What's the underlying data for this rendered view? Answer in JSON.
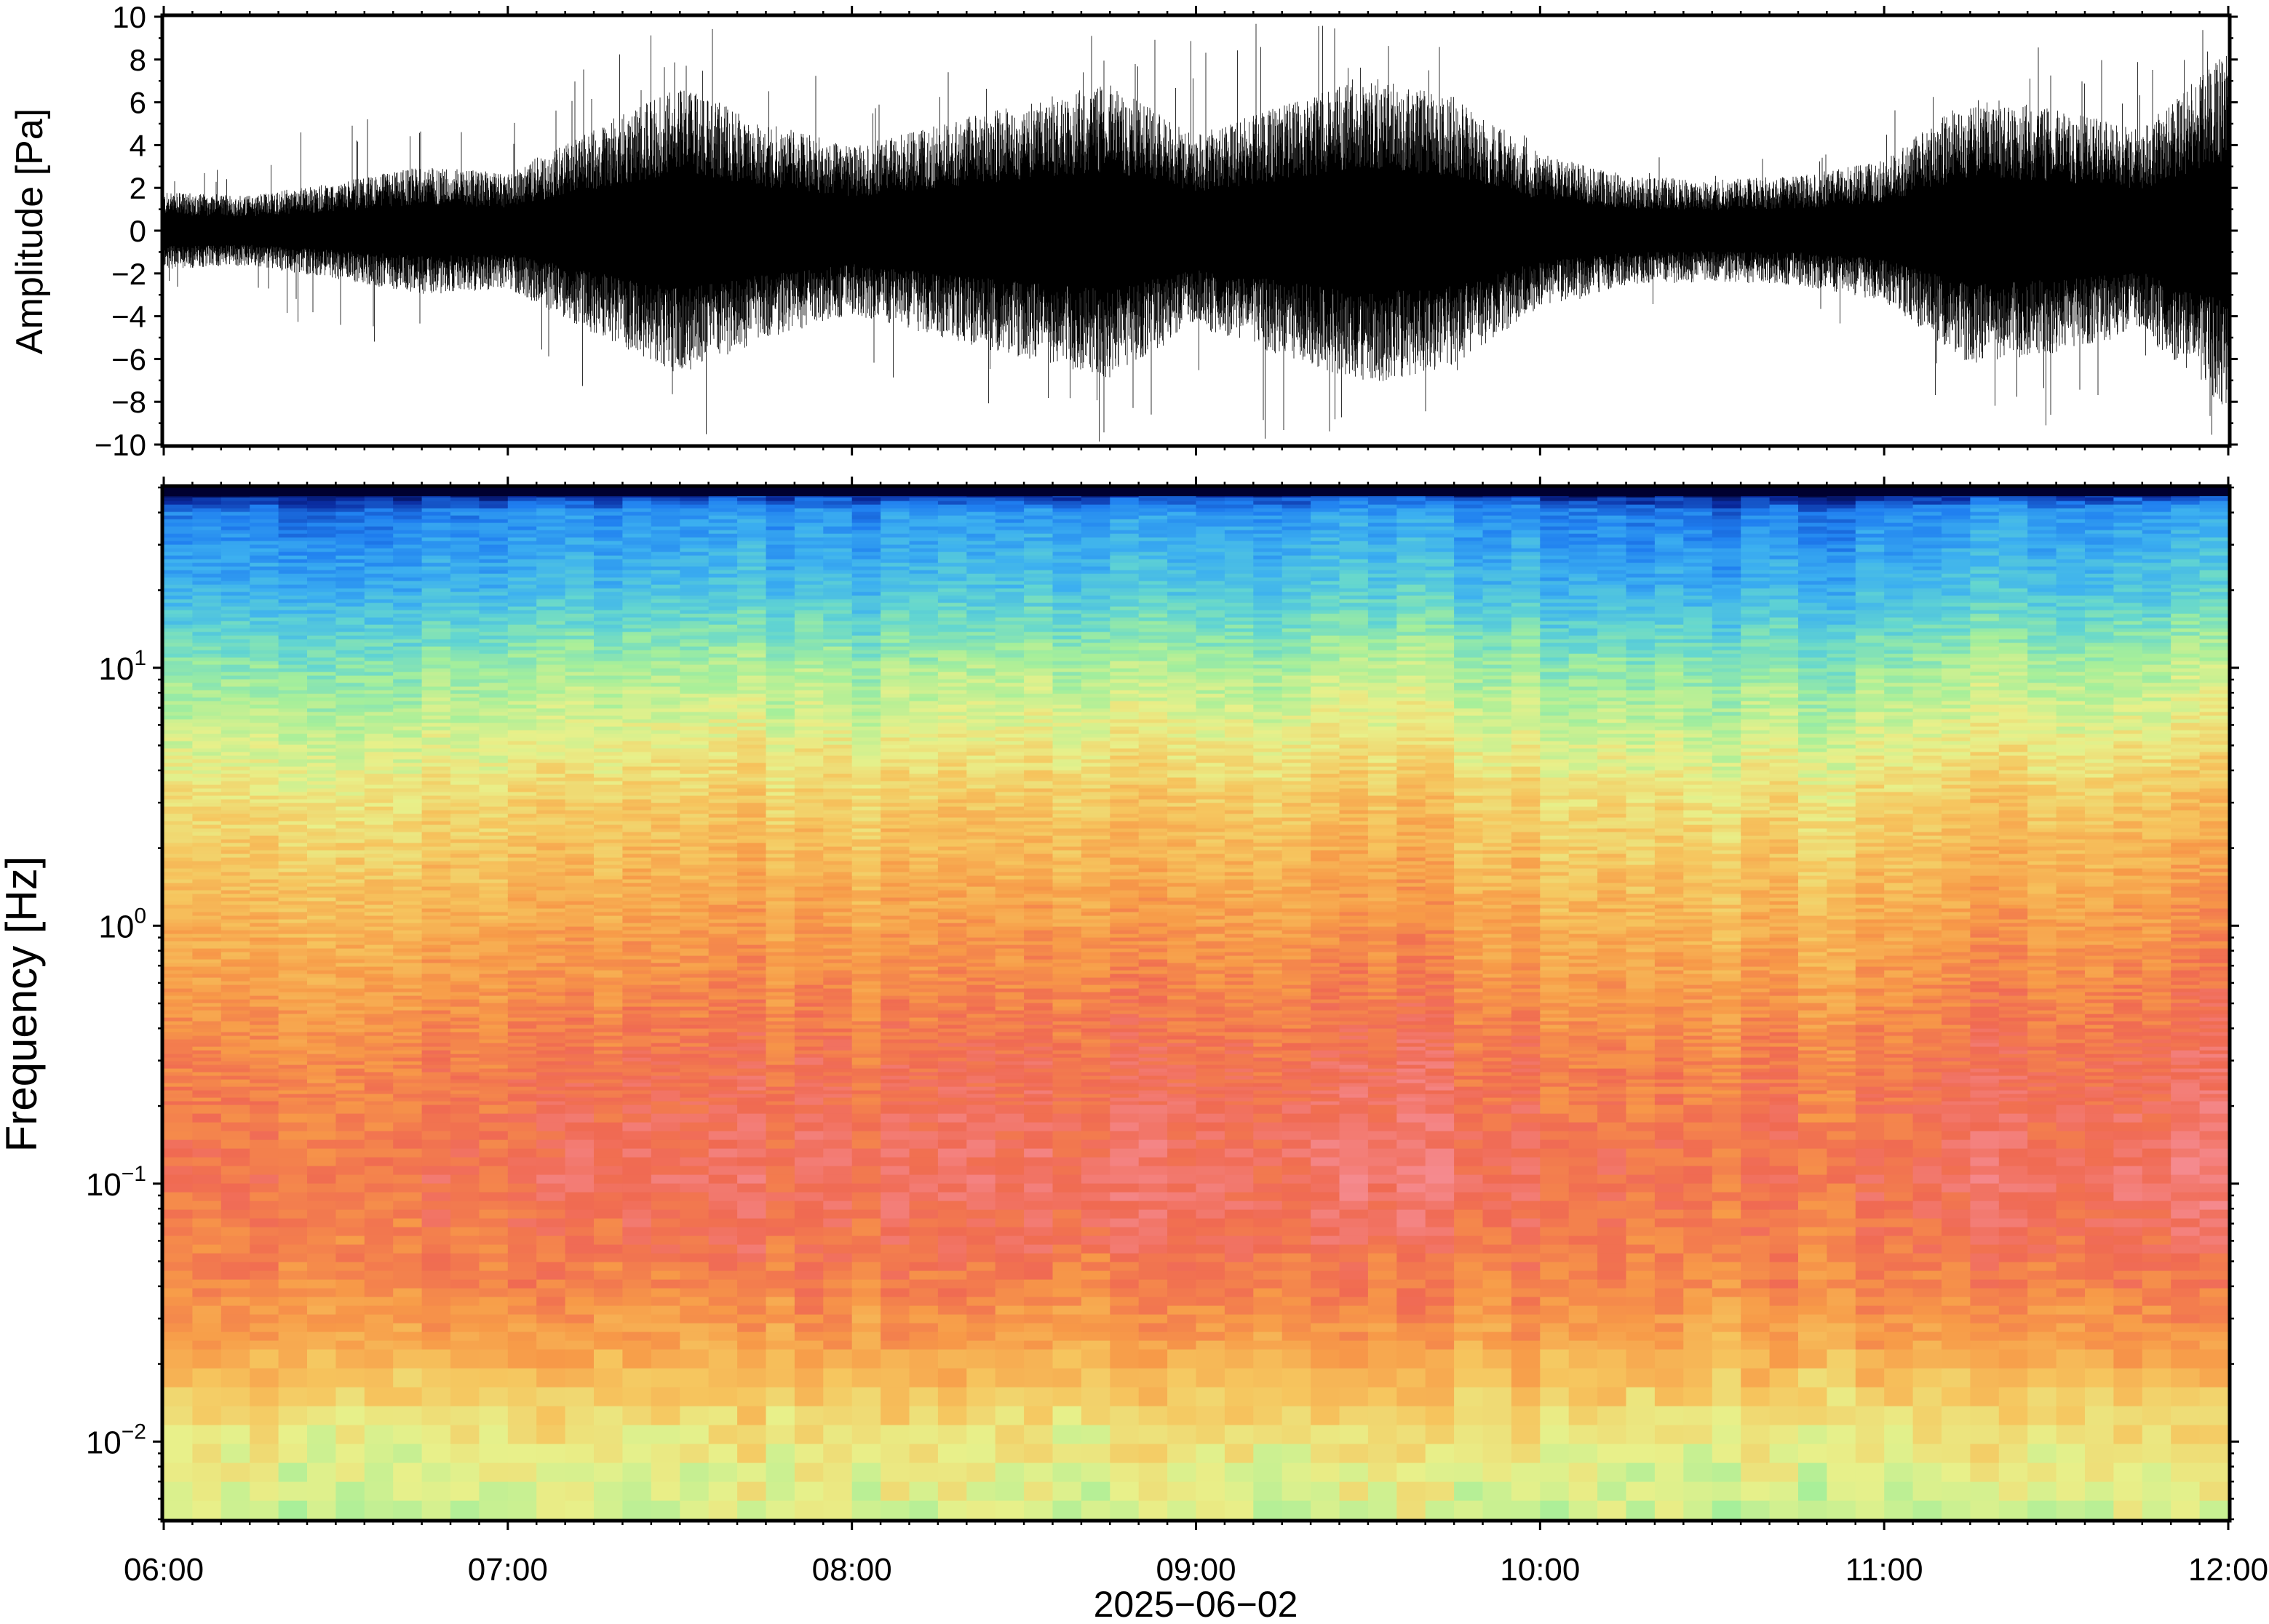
{
  "chart_data": [
    {
      "type": "line",
      "panel": "waveform",
      "ylabel": "Amplitude [Pa]",
      "ylim": [
        -10,
        10
      ],
      "yticks": [
        -10,
        -8,
        -6,
        -4,
        -2,
        0,
        2,
        4,
        6,
        8,
        10
      ],
      "ytick_labels": [
        "−10",
        "−8",
        "−6",
        "−4",
        "−2",
        "0",
        "2",
        "4",
        "6",
        "8",
        "10"
      ],
      "xlim": [
        "06:00",
        "12:00"
      ],
      "line_color": "#000000",
      "series": [
        {
          "time_hours": [
            6.0,
            6.25,
            6.5,
            6.75,
            7.0,
            7.25,
            7.5,
            7.75,
            8.0,
            8.25,
            8.5,
            8.75,
            9.0,
            9.25,
            9.5,
            9.75,
            10.0,
            10.25,
            10.5,
            10.75,
            11.0,
            11.25,
            11.5,
            11.75,
            12.0
          ],
          "envelope_pa": [
            1.2,
            1.1,
            1.5,
            2.0,
            1.8,
            3.2,
            4.5,
            3.4,
            2.6,
            3.3,
            4.0,
            4.6,
            3.0,
            3.9,
            4.8,
            4.2,
            2.4,
            1.7,
            1.6,
            1.7,
            2.2,
            4.2,
            3.8,
            3.2,
            5.6
          ],
          "peak_pa": [
            3.0,
            2.8,
            6.0,
            5.2,
            5.0,
            8.0,
            10.0,
            9.0,
            6.5,
            8.5,
            9.0,
            10.0,
            9.0,
            10.0,
            10.0,
            9.0,
            4.0,
            3.5,
            3.5,
            3.5,
            6.0,
            10.0,
            9.0,
            8.0,
            10.0
          ]
        }
      ],
      "grid": false
    },
    {
      "type": "heatmap",
      "panel": "spectrogram",
      "ylabel": "Frequency [Hz]",
      "xlabel": "2025−06−02",
      "y_scale": "log",
      "ylim_hz": [
        0.005,
        50
      ],
      "yticks_hz": [
        0.01,
        0.1,
        1,
        10
      ],
      "ytick_labels": [
        {
          "base": "10",
          "exp": "−2"
        },
        {
          "base": "10",
          "exp": "−1"
        },
        {
          "base": "10",
          "exp": "0"
        },
        {
          "base": "10",
          "exp": "1"
        }
      ],
      "xticks": [
        "06:00",
        "07:00",
        "08:00",
        "09:00",
        "10:00",
        "11:00",
        "12:00"
      ],
      "colormap": "spectral",
      "colors": [
        "#000030",
        "#0a2a9e",
        "#1f7ef0",
        "#3cb0f0",
        "#63d6d0",
        "#a6ef9a",
        "#e8f08a",
        "#f6c55e",
        "#f79a48",
        "#f06a52",
        "#f58a8f"
      ],
      "relative_level_by_frequency": {
        "freq_hz": [
          0.005,
          0.01,
          0.02,
          0.04,
          0.1,
          0.3,
          1,
          3,
          10,
          20,
          40,
          50
        ],
        "level": [
          0.56,
          0.62,
          0.75,
          0.84,
          0.9,
          0.86,
          0.76,
          0.66,
          0.48,
          0.32,
          0.22,
          0.0
        ]
      },
      "grid": false
    }
  ]
}
